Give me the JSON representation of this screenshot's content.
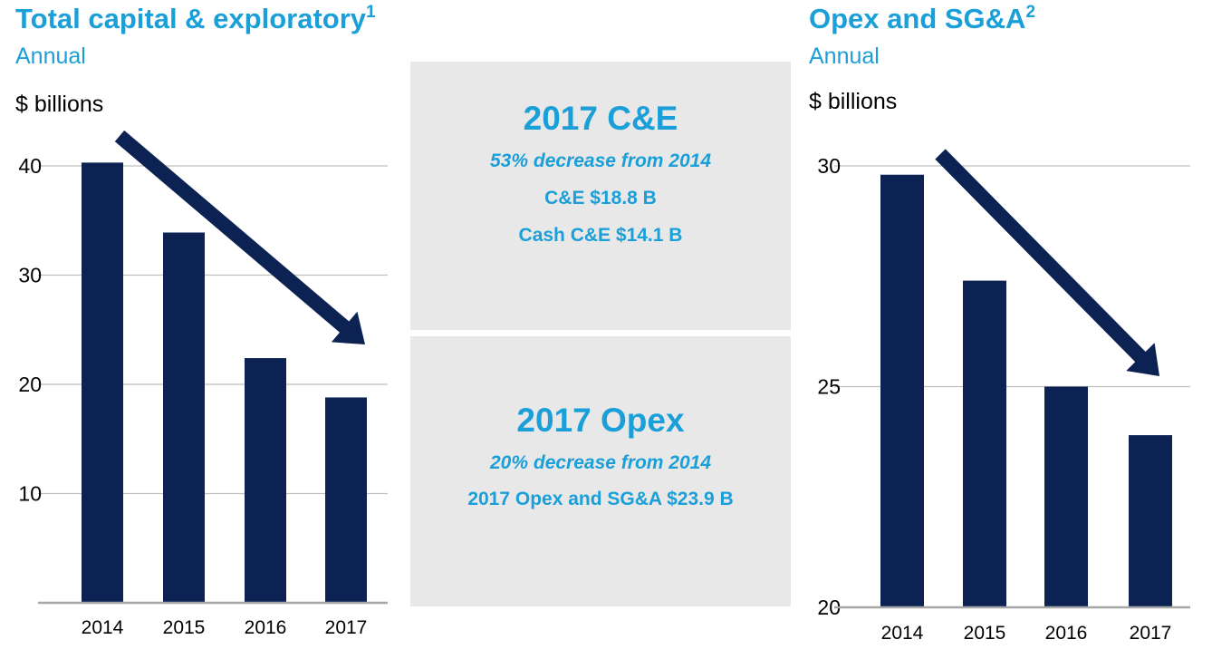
{
  "left": {
    "title": "Total capital & exploratory",
    "title_sup": "1",
    "subtitle": "Annual",
    "unit": "$ billions"
  },
  "right": {
    "title": "Opex and SG&A",
    "title_sup": "2",
    "subtitle": "Annual",
    "unit": "$ billions"
  },
  "panel_ce": {
    "heading": "2017 C&E",
    "line1": "53% decrease from 2014",
    "line2": "C&E $18.8 B",
    "line3": "Cash C&E $14.1 B"
  },
  "panel_opex": {
    "heading": "2017 Opex",
    "line1": "20% decrease from 2014",
    "line2": "2017 Opex and SG&A $23.9 B"
  },
  "colors": {
    "bar": "#0b2253",
    "accent": "#1a9fd8",
    "grid": "#bfbfbf",
    "panel": "#e9e8e8"
  },
  "chart_data": [
    {
      "type": "bar",
      "categories": [
        "2014",
        "2015",
        "2016",
        "2017"
      ],
      "values": [
        40.3,
        33.9,
        22.4,
        18.8
      ],
      "ylim": [
        0,
        40
      ],
      "yticks": [
        10,
        20,
        30,
        40
      ],
      "grid": true,
      "trend_arrow": "down"
    },
    {
      "type": "bar",
      "categories": [
        "2014",
        "2015",
        "2016",
        "2017"
      ],
      "values": [
        29.8,
        27.4,
        25.0,
        23.9
      ],
      "ylim": [
        20,
        30
      ],
      "yticks": [
        20,
        25,
        30
      ],
      "grid": true,
      "trend_arrow": "down"
    }
  ]
}
